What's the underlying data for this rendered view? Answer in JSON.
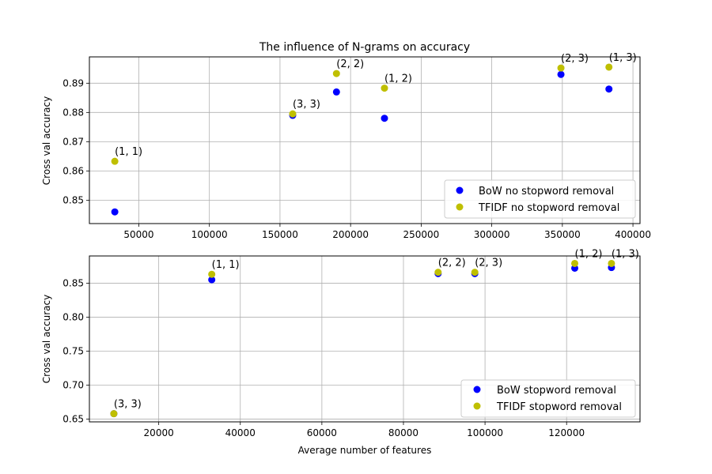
{
  "chart_data": [
    {
      "type": "scatter",
      "title": "The influence of N-grams on accuracy",
      "xlabel": "",
      "ylabel": "Cross val accuracy",
      "xlim": [
        15000,
        405000
      ],
      "ylim": [
        0.842,
        0.899
      ],
      "xticks": [
        50000,
        100000,
        150000,
        200000,
        250000,
        300000,
        350000,
        400000
      ],
      "yticks": [
        0.85,
        0.86,
        0.87,
        0.88,
        0.89
      ],
      "grid": true,
      "legend_position": "lower right",
      "series": [
        {
          "name": "BoW no stopword removal",
          "color": "#0000ff",
          "x": [
            33000,
            159000,
            190000,
            224000,
            349000,
            383000
          ],
          "y": [
            0.846,
            0.879,
            0.887,
            0.878,
            0.893,
            0.888
          ]
        },
        {
          "name": "TFIDF no stopword removal",
          "color": "#bfbf00",
          "x": [
            33000,
            159000,
            190000,
            224000,
            349000,
            383000
          ],
          "y": [
            0.8633,
            0.8795,
            0.8933,
            0.8883,
            0.8952,
            0.8955
          ]
        }
      ],
      "annotations": [
        {
          "text": "(1, 1)",
          "x": 33000,
          "y": 0.8633
        },
        {
          "text": "(3, 3)",
          "x": 159000,
          "y": 0.8795
        },
        {
          "text": "(2, 2)",
          "x": 190000,
          "y": 0.8933
        },
        {
          "text": "(1, 2)",
          "x": 224000,
          "y": 0.8883
        },
        {
          "text": "(2, 3)",
          "x": 349000,
          "y": 0.8952
        },
        {
          "text": "(1, 3)",
          "x": 383000,
          "y": 0.8955
        }
      ]
    },
    {
      "type": "scatter",
      "title": "",
      "xlabel": "Average number of features",
      "ylabel": "Cross val accuracy",
      "xlim": [
        3000,
        138000
      ],
      "ylim": [
        0.646,
        0.89
      ],
      "xticks": [
        20000,
        40000,
        60000,
        80000,
        100000,
        120000
      ],
      "yticks": [
        0.65,
        0.7,
        0.75,
        0.8,
        0.85
      ],
      "grid": true,
      "legend_position": "lower right",
      "series": [
        {
          "name": "BoW stopword removal",
          "color": "#0000ff",
          "x": [
            9000,
            33000,
            88500,
            97500,
            122000,
            131000
          ],
          "y": [
            0.658,
            0.855,
            0.864,
            0.864,
            0.872,
            0.873
          ]
        },
        {
          "name": "TFIDF stopword removal",
          "color": "#bfbf00",
          "x": [
            9000,
            33000,
            88500,
            97500,
            122000,
            131000
          ],
          "y": [
            0.658,
            0.863,
            0.866,
            0.866,
            0.879,
            0.879
          ]
        }
      ],
      "annotations": [
        {
          "text": "(3, 3)",
          "x": 9000,
          "y": 0.658
        },
        {
          "text": "(1, 1)",
          "x": 33000,
          "y": 0.863
        },
        {
          "text": "(2, 2)",
          "x": 88500,
          "y": 0.866
        },
        {
          "text": "(2, 3)",
          "x": 97500,
          "y": 0.866
        },
        {
          "text": "(1, 2)",
          "x": 122000,
          "y": 0.879
        },
        {
          "text": "(1, 3)",
          "x": 131000,
          "y": 0.879
        }
      ]
    }
  ]
}
